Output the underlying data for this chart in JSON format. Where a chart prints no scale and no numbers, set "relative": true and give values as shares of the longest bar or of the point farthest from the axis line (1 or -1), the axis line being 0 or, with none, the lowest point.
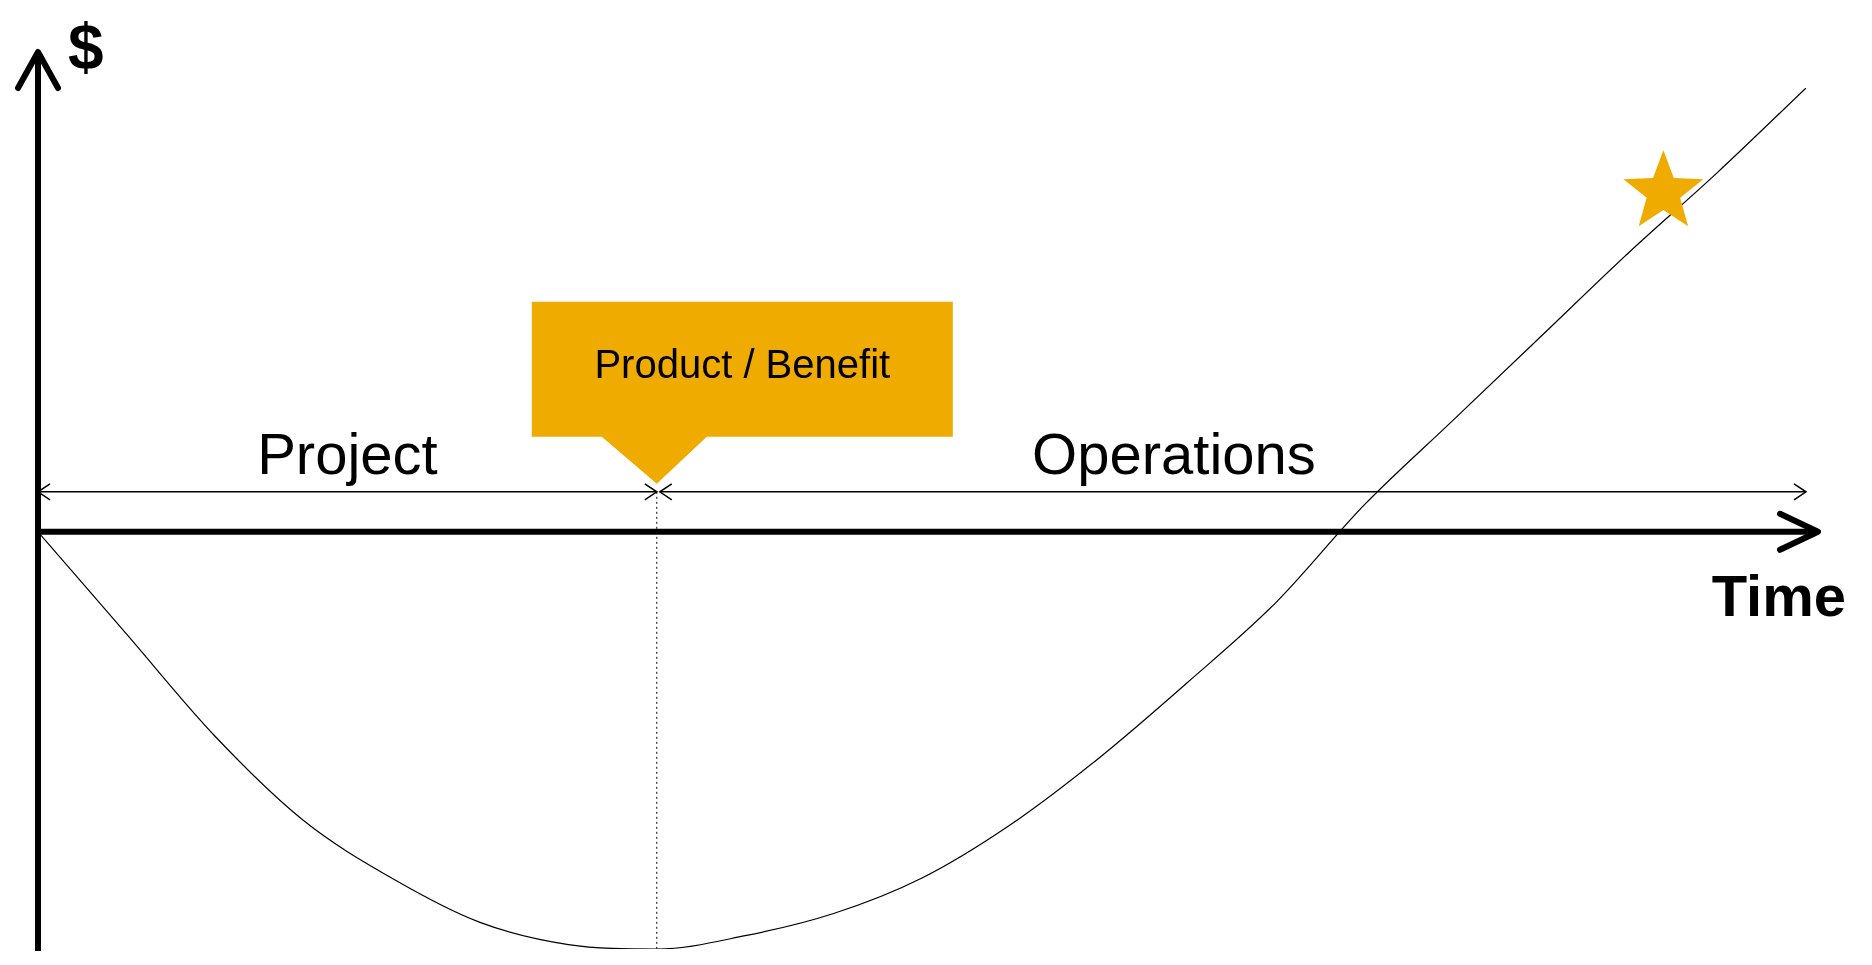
{
  "chart_data": {
    "type": "line",
    "relative": true,
    "xlabel": "Time",
    "ylabel": "$",
    "categories": [
      null,
      null,
      null,
      null,
      null,
      null,
      null,
      null,
      null,
      null,
      null,
      null,
      null,
      null,
      null,
      null,
      null,
      null,
      null,
      null,
      null
    ],
    "values": [
      0,
      -0.23,
      -0.46,
      -0.65,
      -0.78,
      -0.88,
      -0.93,
      -0.94,
      -0.91,
      -0.86,
      -0.78,
      -0.66,
      -0.51,
      -0.34,
      -0.16,
      0.06,
      0.25,
      0.44,
      0.63,
      0.81,
      1
    ],
    "color": "#000000",
    "annotations": [
      "Project",
      "Product / Benefit",
      "Operations"
    ]
  }
}
